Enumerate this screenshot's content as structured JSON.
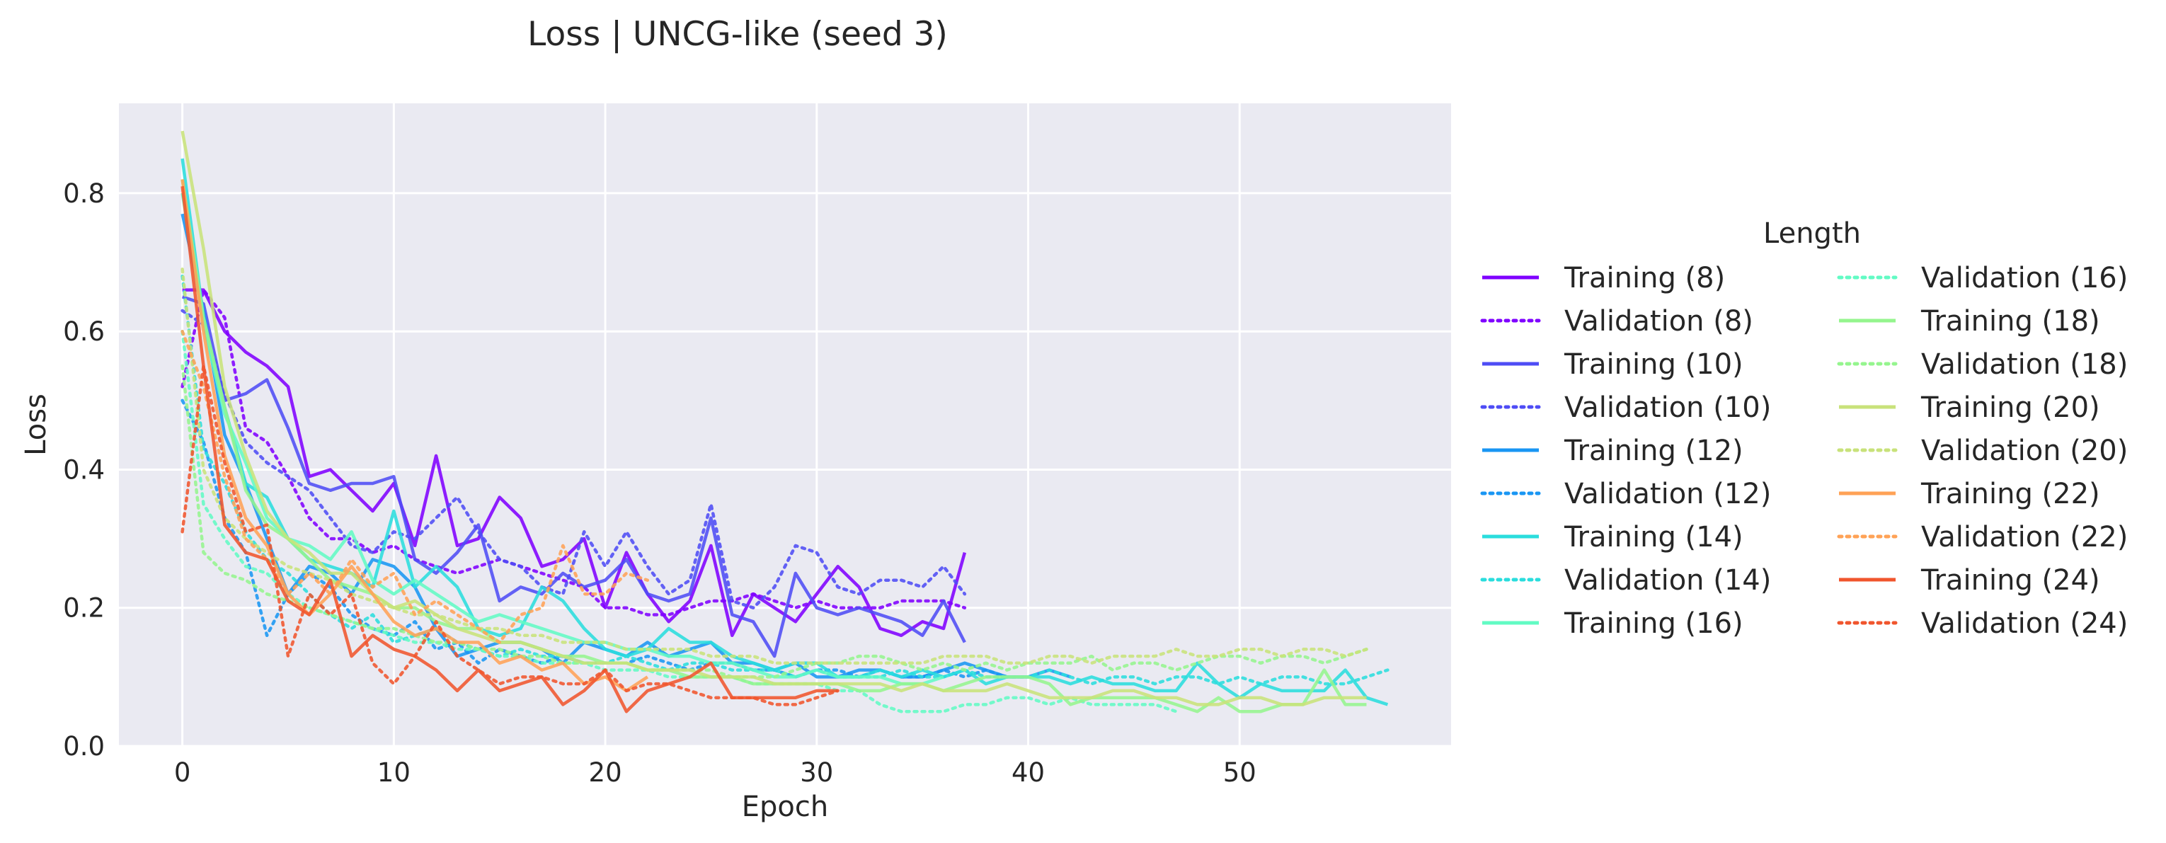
{
  "chart_data": {
    "type": "line",
    "title": "Loss | UNCG-like (seed 3)",
    "xlabel": "Epoch",
    "ylabel": "Loss",
    "xlim": [
      -3,
      60
    ],
    "ylim": [
      0,
      0.93
    ],
    "xticks": [
      0,
      10,
      20,
      30,
      40,
      50
    ],
    "yticks": [
      0.0,
      0.2,
      0.4,
      0.6,
      0.8
    ],
    "xtick_labels": [
      "0",
      "10",
      "20",
      "30",
      "40",
      "50"
    ],
    "ytick_labels": [
      "0.0",
      "0.2",
      "0.4",
      "0.6",
      "0.8"
    ],
    "grid": true,
    "legend": {
      "title": "Length",
      "placement": "right, outside plot",
      "columns": 2
    },
    "series": [
      {
        "name": "Training (8)",
        "style": "solid",
        "color": "#7f00ff",
        "values": [
          0.66,
          0.66,
          0.6,
          0.57,
          0.55,
          0.52,
          0.39,
          0.4,
          0.37,
          0.34,
          0.38,
          0.29,
          0.42,
          0.29,
          0.3,
          0.36,
          0.33,
          0.26,
          0.27,
          0.3,
          0.2,
          0.28,
          0.22,
          0.18,
          0.21,
          0.29,
          0.16,
          0.22,
          0.2,
          0.18,
          0.22,
          0.26,
          0.23,
          0.17,
          0.16,
          0.18,
          0.17,
          0.28
        ]
      },
      {
        "name": "Validation (8)",
        "style": "dotted",
        "color": "#7f00ff",
        "values": [
          0.52,
          0.66,
          0.62,
          0.46,
          0.44,
          0.39,
          0.33,
          0.3,
          0.3,
          0.28,
          0.29,
          0.27,
          0.26,
          0.25,
          0.26,
          0.27,
          0.26,
          0.25,
          0.24,
          0.23,
          0.2,
          0.2,
          0.19,
          0.19,
          0.2,
          0.21,
          0.21,
          0.22,
          0.21,
          0.2,
          0.21,
          0.2,
          0.2,
          0.2,
          0.21,
          0.21,
          0.21,
          0.2
        ]
      },
      {
        "name": "Training (10)",
        "style": "solid",
        "color": "#4e4cf5",
        "values": [
          0.65,
          0.64,
          0.5,
          0.51,
          0.53,
          0.46,
          0.38,
          0.37,
          0.38,
          0.38,
          0.39,
          0.27,
          0.25,
          0.28,
          0.32,
          0.21,
          0.23,
          0.22,
          0.25,
          0.23,
          0.24,
          0.27,
          0.22,
          0.21,
          0.22,
          0.33,
          0.19,
          0.18,
          0.13,
          0.25,
          0.2,
          0.19,
          0.2,
          0.19,
          0.18,
          0.16,
          0.21,
          0.15
        ]
      },
      {
        "name": "Validation (10)",
        "style": "dotted",
        "color": "#4e4cf5",
        "values": [
          0.63,
          0.61,
          0.51,
          0.44,
          0.41,
          0.39,
          0.37,
          0.33,
          0.29,
          0.28,
          0.31,
          0.3,
          0.33,
          0.36,
          0.31,
          0.27,
          0.26,
          0.23,
          0.22,
          0.31,
          0.26,
          0.31,
          0.26,
          0.22,
          0.24,
          0.35,
          0.21,
          0.2,
          0.23,
          0.29,
          0.28,
          0.23,
          0.22,
          0.24,
          0.24,
          0.23,
          0.26,
          0.22
        ]
      },
      {
        "name": "Training (12)",
        "style": "solid",
        "color": "#1996f3",
        "values": [
          0.77,
          0.63,
          0.45,
          0.38,
          0.3,
          0.22,
          0.26,
          0.25,
          0.22,
          0.27,
          0.26,
          0.23,
          0.17,
          0.13,
          0.14,
          0.15,
          0.15,
          0.14,
          0.12,
          0.15,
          0.14,
          0.13,
          0.15,
          0.13,
          0.14,
          0.15,
          0.12,
          0.12,
          0.11,
          0.12,
          0.1,
          0.1,
          0.11,
          0.11,
          0.1,
          0.1,
          0.11,
          0.12,
          0.11,
          0.1,
          0.1,
          0.11,
          0.1
        ]
      },
      {
        "name": "Validation (12)",
        "style": "dotted",
        "color": "#1996f3",
        "values": [
          0.5,
          0.44,
          0.33,
          0.28,
          0.16,
          0.22,
          0.25,
          0.23,
          0.19,
          0.17,
          0.16,
          0.18,
          0.14,
          0.15,
          0.12,
          0.14,
          0.13,
          0.12,
          0.13,
          0.12,
          0.12,
          0.12,
          0.13,
          0.12,
          0.11,
          0.12,
          0.12,
          0.11,
          0.11,
          0.1,
          0.11,
          0.11,
          0.1,
          0.11,
          0.1,
          0.1,
          0.11,
          0.1,
          0.11,
          0.1,
          0.1
        ]
      },
      {
        "name": "Training (14)",
        "style": "solid",
        "color": "#2adddd",
        "values": [
          0.85,
          0.62,
          0.49,
          0.38,
          0.36,
          0.3,
          0.27,
          0.26,
          0.25,
          0.23,
          0.34,
          0.23,
          0.26,
          0.23,
          0.17,
          0.16,
          0.17,
          0.23,
          0.21,
          0.17,
          0.14,
          0.13,
          0.14,
          0.17,
          0.15,
          0.15,
          0.13,
          0.12,
          0.11,
          0.12,
          0.12,
          0.1,
          0.1,
          0.11,
          0.1,
          0.11,
          0.1,
          0.11,
          0.09,
          0.1,
          0.1,
          0.1,
          0.09,
          0.1,
          0.09,
          0.09,
          0.08,
          0.08,
          0.12,
          0.09,
          0.07,
          0.09,
          0.08,
          0.08,
          0.08,
          0.11,
          0.07,
          0.06
        ]
      },
      {
        "name": "Validation (14)",
        "style": "dotted",
        "color": "#2adddd",
        "values": [
          0.68,
          0.43,
          0.38,
          0.31,
          0.27,
          0.25,
          0.22,
          0.19,
          0.17,
          0.19,
          0.15,
          0.16,
          0.17,
          0.15,
          0.14,
          0.13,
          0.14,
          0.13,
          0.13,
          0.12,
          0.12,
          0.13,
          0.12,
          0.11,
          0.12,
          0.12,
          0.11,
          0.11,
          0.11,
          0.1,
          0.11,
          0.1,
          0.1,
          0.1,
          0.11,
          0.1,
          0.1,
          0.11,
          0.1,
          0.1,
          0.1,
          0.11,
          0.1,
          0.09,
          0.1,
          0.1,
          0.09,
          0.1,
          0.1,
          0.09,
          0.1,
          0.09,
          0.1,
          0.1,
          0.09,
          0.09,
          0.1,
          0.11
        ]
      },
      {
        "name": "Training (16)",
        "style": "solid",
        "color": "#62fbc4",
        "values": [
          0.8,
          0.61,
          0.48,
          0.41,
          0.33,
          0.3,
          0.29,
          0.27,
          0.31,
          0.24,
          0.22,
          0.24,
          0.22,
          0.2,
          0.18,
          0.19,
          0.18,
          0.17,
          0.16,
          0.15,
          0.15,
          0.14,
          0.14,
          0.13,
          0.13,
          0.12,
          0.12,
          0.11,
          0.1,
          0.1,
          0.11,
          0.1,
          0.1,
          0.1,
          0.09,
          0.09,
          0.1
        ]
      },
      {
        "name": "Validation (16)",
        "style": "dotted",
        "color": "#62fbc4",
        "values": [
          0.6,
          0.35,
          0.3,
          0.26,
          0.25,
          0.22,
          0.2,
          0.19,
          0.18,
          0.17,
          0.16,
          0.15,
          0.15,
          0.14,
          0.14,
          0.13,
          0.13,
          0.12,
          0.12,
          0.12,
          0.11,
          0.11,
          0.11,
          0.1,
          0.1,
          0.1,
          0.1,
          0.09,
          0.09,
          0.09,
          0.09,
          0.08,
          0.08,
          0.06,
          0.05,
          0.05,
          0.05,
          0.06,
          0.06,
          0.07,
          0.07,
          0.06,
          0.07,
          0.06,
          0.06,
          0.06,
          0.06,
          0.05
        ]
      },
      {
        "name": "Training (18)",
        "style": "solid",
        "color": "#95f58e",
        "values": [
          0.82,
          0.62,
          0.49,
          0.37,
          0.32,
          0.3,
          0.27,
          0.24,
          0.23,
          0.22,
          0.2,
          0.2,
          0.18,
          0.17,
          0.17,
          0.15,
          0.15,
          0.14,
          0.13,
          0.13,
          0.12,
          0.12,
          0.11,
          0.11,
          0.1,
          0.1,
          0.1,
          0.09,
          0.09,
          0.09,
          0.09,
          0.09,
          0.08,
          0.08,
          0.09,
          0.09,
          0.08,
          0.09,
          0.1,
          0.1,
          0.1,
          0.09,
          0.06,
          0.07,
          0.07,
          0.07,
          0.07,
          0.06,
          0.05,
          0.07,
          0.05,
          0.05,
          0.06,
          0.06,
          0.11,
          0.06,
          0.06
        ]
      },
      {
        "name": "Validation (18)",
        "style": "dotted",
        "color": "#95f58e",
        "values": [
          0.55,
          0.28,
          0.25,
          0.24,
          0.22,
          0.21,
          0.2,
          0.19,
          0.18,
          0.17,
          0.17,
          0.16,
          0.15,
          0.15,
          0.14,
          0.14,
          0.13,
          0.13,
          0.12,
          0.12,
          0.12,
          0.12,
          0.11,
          0.11,
          0.11,
          0.11,
          0.1,
          0.1,
          0.1,
          0.11,
          0.12,
          0.12,
          0.13,
          0.13,
          0.12,
          0.11,
          0.12,
          0.11,
          0.12,
          0.11,
          0.12,
          0.12,
          0.12,
          0.13,
          0.11,
          0.12,
          0.12,
          0.11,
          0.12,
          0.13,
          0.13,
          0.12,
          0.13,
          0.13,
          0.12,
          0.13,
          0.14
        ]
      },
      {
        "name": "Training (20)",
        "style": "solid",
        "color": "#c8e27a",
        "values": [
          0.89,
          0.72,
          0.52,
          0.42,
          0.34,
          0.3,
          0.28,
          0.25,
          0.25,
          0.22,
          0.2,
          0.21,
          0.19,
          0.17,
          0.16,
          0.15,
          0.15,
          0.14,
          0.13,
          0.12,
          0.12,
          0.12,
          0.11,
          0.11,
          0.11,
          0.1,
          0.1,
          0.1,
          0.09,
          0.09,
          0.09,
          0.09,
          0.09,
          0.09,
          0.08,
          0.09,
          0.08,
          0.08,
          0.08,
          0.09,
          0.08,
          0.07,
          0.07,
          0.07,
          0.08,
          0.08,
          0.07,
          0.07,
          0.06,
          0.06,
          0.07,
          0.07,
          0.06,
          0.06,
          0.07,
          0.07,
          0.07
        ]
      },
      {
        "name": "Validation (20)",
        "style": "dotted",
        "color": "#c8e27a",
        "values": [
          0.69,
          0.4,
          0.33,
          0.3,
          0.28,
          0.26,
          0.25,
          0.24,
          0.22,
          0.21,
          0.2,
          0.19,
          0.19,
          0.18,
          0.17,
          0.17,
          0.16,
          0.16,
          0.15,
          0.15,
          0.15,
          0.14,
          0.14,
          0.14,
          0.14,
          0.13,
          0.13,
          0.13,
          0.12,
          0.12,
          0.12,
          0.12,
          0.12,
          0.12,
          0.12,
          0.12,
          0.13,
          0.13,
          0.13,
          0.12,
          0.12,
          0.13,
          0.13,
          0.12,
          0.13,
          0.13,
          0.13,
          0.14,
          0.13,
          0.13,
          0.14,
          0.14,
          0.13,
          0.14,
          0.14,
          0.13,
          0.14
        ]
      },
      {
        "name": "Training (22)",
        "style": "solid",
        "color": "#ffa256",
        "values": [
          0.82,
          0.6,
          0.42,
          0.33,
          0.29,
          0.22,
          0.19,
          0.22,
          0.26,
          0.22,
          0.18,
          0.16,
          0.17,
          0.15,
          0.15,
          0.12,
          0.13,
          0.11,
          0.12,
          0.09,
          0.1,
          0.08,
          0.1
        ]
      },
      {
        "name": "Validation (22)",
        "style": "dotted",
        "color": "#ffa256",
        "values": [
          0.6,
          0.52,
          0.39,
          0.3,
          0.27,
          0.22,
          0.25,
          0.22,
          0.27,
          0.23,
          0.25,
          0.19,
          0.21,
          0.19,
          0.17,
          0.15,
          0.19,
          0.2,
          0.29,
          0.22,
          0.22,
          0.25,
          0.24
        ]
      },
      {
        "name": "Training (24)",
        "style": "solid",
        "color": "#f0552d",
        "values": [
          0.81,
          0.55,
          0.32,
          0.28,
          0.27,
          0.21,
          0.19,
          0.24,
          0.13,
          0.16,
          0.14,
          0.13,
          0.11,
          0.08,
          0.11,
          0.08,
          0.09,
          0.1,
          0.06,
          0.08,
          0.11,
          0.05,
          0.08,
          0.09,
          0.1,
          0.12,
          0.07,
          0.07,
          0.07,
          0.07,
          0.08,
          0.08
        ]
      },
      {
        "name": "Validation (24)",
        "style": "dotted",
        "color": "#f0552d",
        "values": [
          0.31,
          0.55,
          0.41,
          0.31,
          0.32,
          0.13,
          0.22,
          0.19,
          0.22,
          0.12,
          0.09,
          0.13,
          0.18,
          0.13,
          0.11,
          0.09,
          0.1,
          0.1,
          0.09,
          0.09,
          0.11,
          0.08,
          0.09,
          0.09,
          0.08,
          0.07,
          0.07,
          0.07,
          0.06,
          0.06,
          0.07,
          0.08
        ]
      }
    ]
  },
  "colors": {
    "plot_background": "#eaeaf2",
    "grid": "#ffffff",
    "text": "#262626"
  }
}
